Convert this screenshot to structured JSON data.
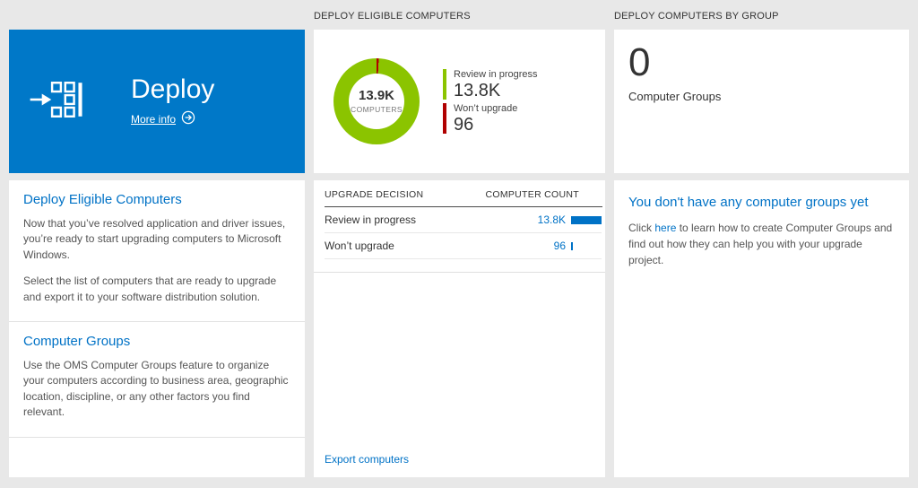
{
  "colors": {
    "tile_blue": "#0078c8",
    "link_blue": "#0072c6",
    "donut_green": "#8bc400",
    "donut_red": "#b00000",
    "bar_blue": "#0072c6",
    "page_bg": "#e8e8e8"
  },
  "left": {
    "tile": {
      "title": "Deploy",
      "more_info_label": "More info"
    },
    "sections": [
      {
        "heading": "Deploy Eligible Computers",
        "paragraphs": [
          "Now that you’ve resolved application and driver issues, you’re ready to start upgrading computers to Microsoft Windows.",
          "Select the list of computers that are ready to upgrade and export it to your software distribution solution."
        ]
      },
      {
        "heading": "Computer Groups",
        "paragraphs": [
          "Use the OMS Computer Groups feature to organize your computers according to business area, geographic location, discipline, or any other factors you find relevant."
        ]
      }
    ]
  },
  "middle": {
    "header": "DEPLOY ELIGIBLE COMPUTERS",
    "donut": {
      "center_value": "13.9K",
      "center_label": "COMPUTERS"
    },
    "legend": [
      {
        "label": "Review in progress",
        "value": "13.8K",
        "color": "#8bc400"
      },
      {
        "label": "Won’t upgrade",
        "value": "96",
        "color": "#b00000"
      }
    ],
    "table": {
      "headers": [
        "UPGRADE DECISION",
        "COMPUTER COUNT"
      ],
      "rows": [
        {
          "label": "Review in progress",
          "value": "13.8K",
          "fraction": 1
        },
        {
          "label": "Won’t upgrade",
          "value": "96",
          "fraction": 0.007
        }
      ]
    },
    "footer_link": "Export computers"
  },
  "right": {
    "header": "DEPLOY COMPUTERS BY GROUP",
    "count_value": "0",
    "count_label": "Computer Groups",
    "empty": {
      "heading": "You don't have any computer groups yet",
      "text_before": "Click ",
      "link_text": "here",
      "text_after": " to learn how to create Computer Groups and find out how they can help you with your upgrade project."
    }
  },
  "chart_data": {
    "type": "pie",
    "title": "Deploy eligible computers by upgrade decision",
    "labels": [
      "Review in progress",
      "Won't upgrade"
    ],
    "values": [
      13800,
      96
    ],
    "colors": [
      "#8bc400",
      "#b00000"
    ],
    "center_value": "13.9K",
    "center_label": "COMPUTERS",
    "legend_position": "right"
  }
}
